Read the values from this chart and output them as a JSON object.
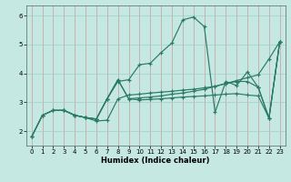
{
  "xlabel": "Humidex (Indice chaleur)",
  "bg_color": "#c5e8e2",
  "grid_color": "#a0cfc8",
  "line_color": "#2a7a65",
  "xlim": [
    -0.5,
    23.5
  ],
  "ylim": [
    1.5,
    6.35
  ],
  "yticks": [
    2,
    3,
    4,
    5,
    6
  ],
  "xticks": [
    0,
    1,
    2,
    3,
    4,
    5,
    6,
    7,
    8,
    9,
    10,
    11,
    12,
    13,
    14,
    15,
    16,
    17,
    18,
    19,
    20,
    21,
    22,
    23
  ],
  "series": [
    {
      "x": [
        0,
        1,
        2,
        3,
        4,
        5,
        6,
        7,
        8,
        9,
        10,
        11,
        12,
        13,
        14,
        15,
        16,
        17,
        18,
        19,
        20,
        21,
        22,
        23
      ],
      "y": [
        1.8,
        2.55,
        2.72,
        2.72,
        2.55,
        2.47,
        2.35,
        2.38,
        3.12,
        3.25,
        3.28,
        3.32,
        3.35,
        3.38,
        3.42,
        3.45,
        3.5,
        3.55,
        3.65,
        3.75,
        3.85,
        3.95,
        4.5,
        5.1
      ]
    },
    {
      "x": [
        3,
        4,
        5,
        6,
        7,
        8,
        9,
        10,
        11,
        12,
        13,
        14,
        15,
        16,
        17,
        18,
        19,
        20,
        21,
        22,
        23
      ],
      "y": [
        2.72,
        2.55,
        2.47,
        2.42,
        3.12,
        3.72,
        3.78,
        4.3,
        4.35,
        4.72,
        5.05,
        5.85,
        5.95,
        5.62,
        2.65,
        3.72,
        3.58,
        4.05,
        3.52,
        2.45,
        5.1
      ]
    },
    {
      "x": [
        0,
        1,
        2,
        3,
        4,
        5,
        6,
        7,
        8,
        9,
        10,
        11,
        12,
        13,
        14,
        15,
        16,
        17,
        18,
        19,
        20,
        21,
        22,
        23
      ],
      "y": [
        1.8,
        2.55,
        2.72,
        2.72,
        2.55,
        2.47,
        2.42,
        3.12,
        3.78,
        3.12,
        3.15,
        3.18,
        3.22,
        3.28,
        3.32,
        3.38,
        3.45,
        3.55,
        3.65,
        3.72,
        3.72,
        3.52,
        2.45,
        5.1
      ]
    },
    {
      "x": [
        0,
        1,
        2,
        3,
        4,
        5,
        6,
        7,
        8,
        9,
        10,
        11,
        12,
        13,
        14,
        15,
        16,
        17,
        18,
        19,
        20,
        21,
        22,
        23
      ],
      "y": [
        1.8,
        2.55,
        2.72,
        2.72,
        2.55,
        2.47,
        2.42,
        3.12,
        3.78,
        3.12,
        3.08,
        3.1,
        3.12,
        3.15,
        3.18,
        3.2,
        3.22,
        3.25,
        3.28,
        3.3,
        3.25,
        3.22,
        2.45,
        5.1
      ]
    }
  ]
}
